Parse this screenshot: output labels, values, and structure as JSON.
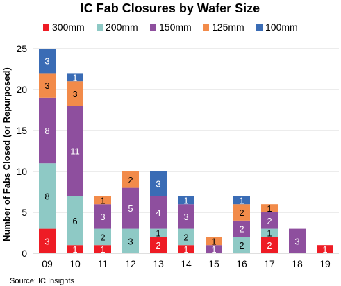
{
  "chart_data": {
    "type": "bar",
    "stacked": true,
    "title": "IC Fab Closures by Wafer Size",
    "ylabel": "Number of Fabs Closed (or Repurposed)",
    "xlabel": "",
    "ylim": [
      0,
      25
    ],
    "yticks": [
      0,
      5,
      10,
      15,
      20,
      25
    ],
    "grid": true,
    "legend_position": "top",
    "categories": [
      "09",
      "10",
      "11",
      "12",
      "13",
      "14",
      "15",
      "16",
      "17",
      "18",
      "19"
    ],
    "series": [
      {
        "name": "300mm",
        "color": "#ee1c25",
        "label_color": "#ffffff",
        "values": [
          3,
          1,
          1,
          0,
          2,
          1,
          0,
          0,
          2,
          0,
          1
        ]
      },
      {
        "name": "200mm",
        "color": "#8ec9c5",
        "label_color": "#000000",
        "values": [
          8,
          6,
          2,
          3,
          1,
          2,
          0,
          2,
          1,
          0,
          0
        ]
      },
      {
        "name": "150mm",
        "color": "#8e4f9e",
        "label_color": "#ffffff",
        "values": [
          8,
          11,
          3,
          5,
          4,
          3,
          1,
          2,
          2,
          3,
          0
        ]
      },
      {
        "name": "125mm",
        "color": "#f28b4a",
        "label_color": "#000000",
        "values": [
          3,
          3,
          1,
          2,
          0,
          0,
          1,
          2,
          1,
          0,
          0
        ]
      },
      {
        "name": "100mm",
        "color": "#3a6cb5",
        "label_color": "#ffffff",
        "values": [
          3,
          1,
          0,
          0,
          3,
          1,
          0,
          1,
          0,
          0,
          0
        ]
      }
    ],
    "source": "Source:  IC Insights"
  }
}
